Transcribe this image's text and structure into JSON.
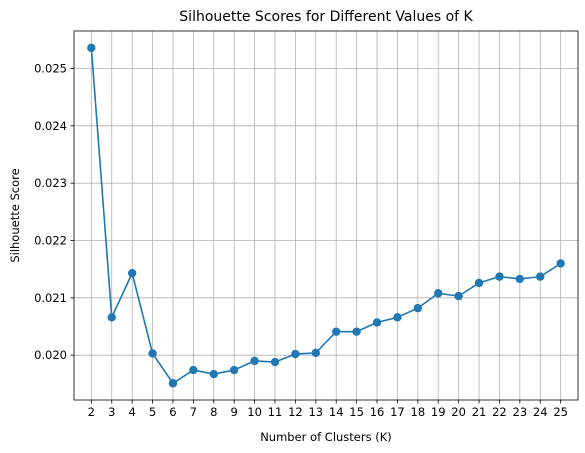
{
  "chart_data": {
    "type": "line",
    "title": "Silhouette Scores for Different Values of K",
    "xlabel": "Number of Clusters (K)",
    "ylabel": "Silhouette Score",
    "x": [
      2,
      3,
      4,
      5,
      6,
      7,
      8,
      9,
      10,
      11,
      12,
      13,
      14,
      15,
      16,
      17,
      18,
      19,
      20,
      21,
      22,
      23,
      24,
      25
    ],
    "series": [
      {
        "values": [
          0.02536,
          0.02066,
          0.02143,
          0.02003,
          0.01951,
          0.01974,
          0.01967,
          0.01974,
          0.0199,
          0.01988,
          0.02002,
          0.02004,
          0.02041,
          0.02041,
          0.02057,
          0.02066,
          0.02082,
          0.02108,
          0.02103,
          0.02126,
          0.02137,
          0.02133,
          0.02137,
          0.0216
        ],
        "color": "#1f77b4",
        "marker": "circle"
      }
    ],
    "xlim": [
      1.15,
      25.85
    ],
    "ylim": [
      0.019218,
      0.025654
    ],
    "xticks": [
      "2",
      "3",
      "4",
      "5",
      "6",
      "7",
      "8",
      "9",
      "10",
      "11",
      "12",
      "13",
      "14",
      "15",
      "16",
      "17",
      "18",
      "19",
      "20",
      "21",
      "22",
      "23",
      "24",
      "25"
    ],
    "yticks": [
      "0.020",
      "0.021",
      "0.022",
      "0.023",
      "0.024",
      "0.025"
    ],
    "grid": true,
    "legend": false
  }
}
